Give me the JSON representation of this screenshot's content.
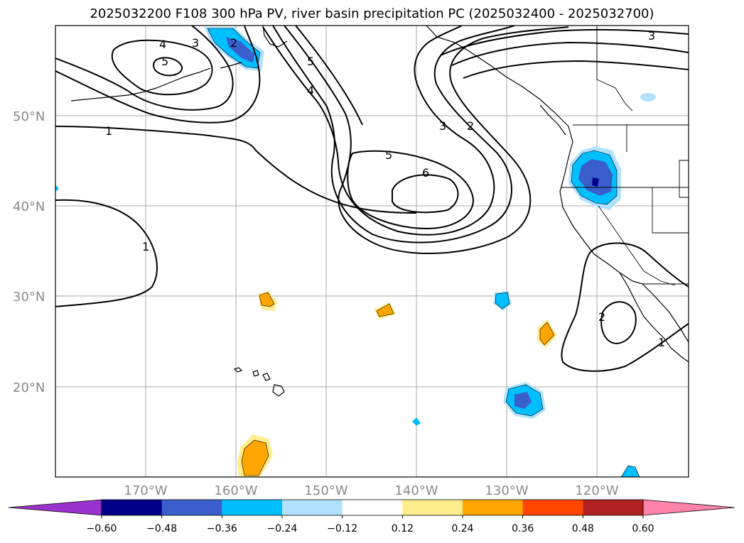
{
  "title": "2025032200 F108 300 hPa PV, river basin precipitation PC (2025032400 - 2025032700)",
  "map": {
    "latitude_labels": [
      "50°N",
      "40°N",
      "30°N",
      "20°N"
    ],
    "longitude_labels": [
      "170°W",
      "160°W",
      "150°W",
      "140°W",
      "130°W",
      "120°W"
    ],
    "contour_labels": [
      "4",
      "5",
      "3",
      "2",
      "5",
      "4",
      "1",
      "5",
      "6",
      "3",
      "2",
      "3",
      "1",
      "2",
      "1"
    ],
    "colors": {
      "contour": "#000000",
      "grid": "#aaaaaa",
      "coastline": "#000000"
    }
  },
  "colorbar": {
    "ticks": [
      "−0.60",
      "−0.48",
      "−0.36",
      "−0.24",
      "−0.12",
      "0.12",
      "0.24",
      "0.36",
      "0.48",
      "0.60"
    ],
    "colors": [
      "#9932cc",
      "#00008b",
      "#3a5fcd",
      "#00bfff",
      "#b0e2ff",
      "#ffffff",
      "#ffec8b",
      "#ffa500",
      "#ff4500",
      "#b22222",
      "#ff82ab"
    ]
  }
}
